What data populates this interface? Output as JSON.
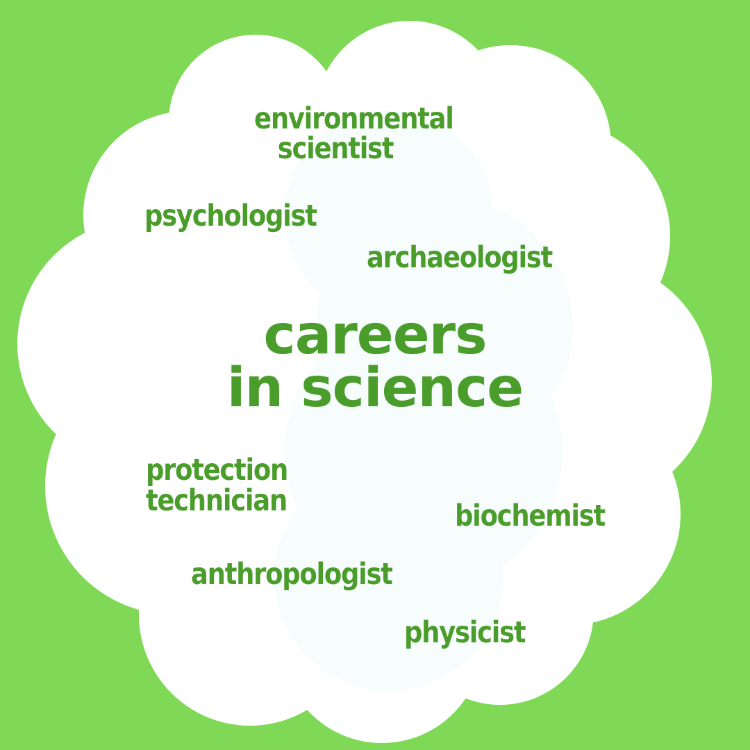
{
  "colors": {
    "background": "#7fd957",
    "cloud": "#ffffff",
    "cloud_shade": "#f7fcfd",
    "text": "#4a9d2b"
  },
  "headline": {
    "line1": "careers",
    "line2": "in science"
  },
  "careers": [
    {
      "line1": "environmental",
      "line2": "scientist"
    },
    {
      "line1": "psychologist"
    },
    {
      "line1": "archaeologist"
    },
    {
      "line1": "protection",
      "line2": "technician"
    },
    {
      "line1": "biochemist"
    },
    {
      "line1": "anthropologist"
    },
    {
      "line1": "physicist"
    }
  ]
}
